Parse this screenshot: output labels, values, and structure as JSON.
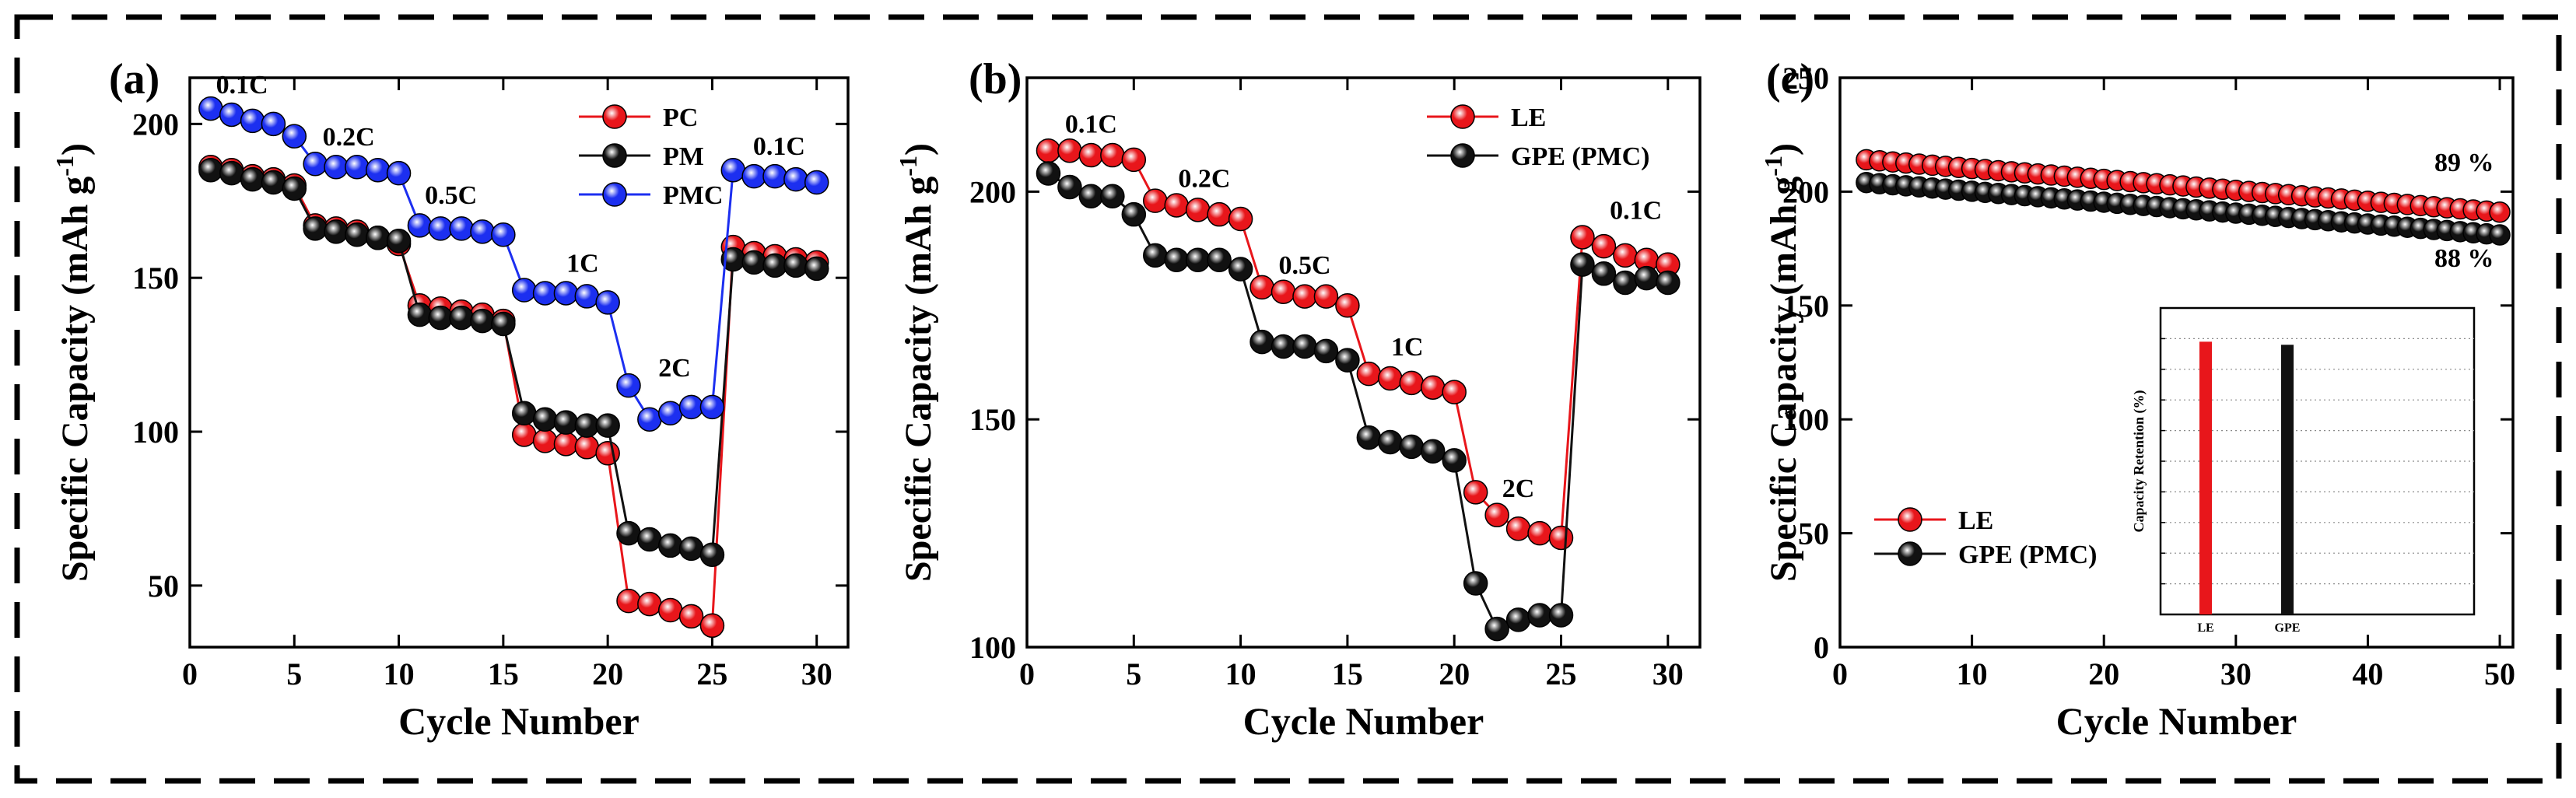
{
  "colors": {
    "red": "#e8161b",
    "black": "#111111",
    "blue": "#1c2ff0",
    "gray": "#8a8a8a"
  },
  "chart_data": [
    {
      "type": "line",
      "panel_label": "(a)",
      "xlabel": "Cycle Number",
      "ylabel": "Specific Capacity (mAh g",
      "ylabel_sup": "-1",
      "ylabel_close": ")",
      "xlim": [
        0,
        31.5
      ],
      "ylim": [
        30,
        215
      ],
      "xticks": [
        "0",
        "5",
        "10",
        "15",
        "20",
        "25",
        "30"
      ],
      "xtick_values": [
        0,
        5,
        10,
        15,
        20,
        25,
        30
      ],
      "yticks": [
        "50",
        "100",
        "150",
        "200"
      ],
      "ytick_values": [
        50,
        100,
        150,
        200
      ],
      "legend": "top-right",
      "series": [
        {
          "name": "PC",
          "color": "red",
          "values": [
            186,
            185,
            183,
            182,
            180,
            167,
            166,
            165,
            163,
            161,
            141,
            140,
            139,
            138,
            136,
            99,
            97,
            96,
            95,
            93,
            45,
            44,
            42,
            40,
            37,
            160,
            158,
            157,
            156,
            155
          ]
        },
        {
          "name": "PM",
          "color": "black",
          "values": [
            185,
            184,
            182,
            181,
            179,
            166,
            165,
            164,
            163,
            162,
            138,
            137,
            137,
            136,
            135,
            106,
            104,
            103,
            102,
            102,
            67,
            65,
            63,
            62,
            60,
            156,
            155,
            154,
            154,
            153
          ]
        },
        {
          "name": "PMC",
          "color": "blue",
          "values": [
            205,
            203,
            201,
            200,
            196,
            187,
            186,
            186,
            185,
            184,
            167,
            166,
            166,
            165,
            164,
            146,
            145,
            145,
            144,
            142,
            115,
            104,
            106,
            108,
            108,
            185,
            183,
            183,
            182,
            181
          ]
        }
      ],
      "annotations": [
        {
          "text": "0.1C",
          "x": 2.5,
          "y": 210
        },
        {
          "text": "0.2C",
          "x": 7.6,
          "y": 193
        },
        {
          "text": "0.5C",
          "x": 12.5,
          "y": 174
        },
        {
          "text": "1C",
          "x": 18.8,
          "y": 152
        },
        {
          "text": "2C",
          "x": 23.2,
          "y": 118
        },
        {
          "text": "0.1C",
          "x": 28.2,
          "y": 190
        }
      ]
    },
    {
      "type": "line",
      "panel_label": "(b)",
      "xlabel": "Cycle Number",
      "ylabel": "Specific Capacity (mAh g",
      "ylabel_sup": "-1",
      "ylabel_close": ")",
      "xlim": [
        0,
        31.5
      ],
      "ylim": [
        100,
        225
      ],
      "xticks": [
        "0",
        "5",
        "10",
        "15",
        "20",
        "25",
        "30"
      ],
      "xtick_values": [
        0,
        5,
        10,
        15,
        20,
        25,
        30
      ],
      "yticks": [
        "100",
        "150",
        "200"
      ],
      "ytick_values": [
        100,
        150,
        200
      ],
      "legend": "top-right",
      "series": [
        {
          "name": "LE",
          "color": "red",
          "values": [
            209,
            209,
            208,
            208,
            207,
            198,
            197,
            196,
            195,
            194,
            179,
            178,
            177,
            177,
            175,
            160,
            159,
            158,
            157,
            156,
            134,
            129,
            126,
            125,
            124,
            190,
            188,
            186,
            185,
            184
          ]
        },
        {
          "name": "GPE (PMC)",
          "color": "black",
          "values": [
            204,
            201,
            199,
            199,
            195,
            186,
            185,
            185,
            185,
            183,
            167,
            166,
            166,
            165,
            163,
            146,
            145,
            144,
            143,
            141,
            114,
            104,
            106,
            107,
            107,
            184,
            182,
            180,
            181,
            180
          ]
        }
      ],
      "annotations": [
        {
          "text": "0.1C",
          "x": 3.0,
          "y": 213
        },
        {
          "text": "0.2C",
          "x": 8.3,
          "y": 201
        },
        {
          "text": "0.5C",
          "x": 13.0,
          "y": 182
        },
        {
          "text": "1C",
          "x": 17.8,
          "y": 164
        },
        {
          "text": "2C",
          "x": 23.0,
          "y": 133
        },
        {
          "text": "0.1C",
          "x": 28.5,
          "y": 194
        }
      ]
    },
    {
      "type": "scatter",
      "panel_label": "(c)",
      "xlabel": "Cycle Number",
      "ylabel": "Specific Capacity (mAh g",
      "ylabel_sup": "-1",
      "ylabel_close": ")",
      "xlim": [
        0,
        51
      ],
      "ylim": [
        0,
        250
      ],
      "xticks": [
        "0",
        "10",
        "20",
        "30",
        "40",
        "50"
      ],
      "xtick_values": [
        0,
        10,
        20,
        30,
        40,
        50
      ],
      "yticks": [
        "0",
        "50",
        "100",
        "150",
        "200",
        "250"
      ],
      "ytick_values": [
        0,
        50,
        100,
        150,
        200,
        250
      ],
      "legend": "bottom-left",
      "series": [
        {
          "name": "LE",
          "color": "red",
          "x_start": 2,
          "x_end": 50,
          "y_start": 214,
          "y_end": 191
        },
        {
          "name": "GPE (PMC)",
          "color": "black",
          "x_start": 2,
          "x_end": 50,
          "y_start": 204,
          "y_end": 181
        }
      ],
      "annotations": [
        {
          "text": "89 %",
          "x": 47.3,
          "y": 209
        },
        {
          "text": "88 %",
          "x": 47.3,
          "y": 167
        }
      ],
      "inset": {
        "type": "bar",
        "ylabel": "Capacity Retention (%)",
        "ylim": [
          0,
          100
        ],
        "categories": [
          "LE",
          "GPE"
        ],
        "values": [
          89,
          88
        ],
        "colors": [
          "red",
          "black"
        ]
      }
    }
  ]
}
